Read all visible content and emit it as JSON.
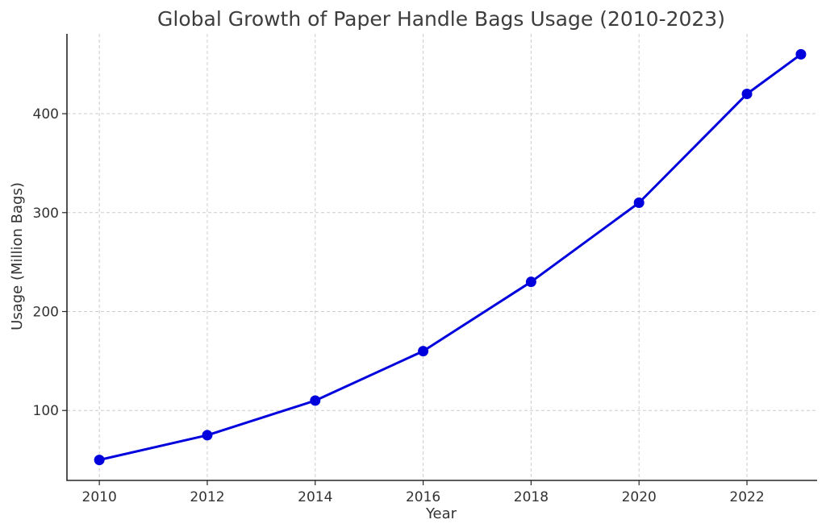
{
  "chart_data": {
    "type": "line",
    "title": "Global Growth of Paper Handle Bags Usage (2010-2023)",
    "xlabel": "Year",
    "ylabel": "Usage (Million Bags)",
    "x": [
      2010,
      2012,
      2014,
      2016,
      2018,
      2020,
      2022,
      2023
    ],
    "series": [
      {
        "values": [
          50,
          75,
          110,
          160,
          230,
          310,
          420,
          460
        ]
      }
    ],
    "xticks": [
      "2010",
      "2012",
      "2014",
      "2016",
      "2018",
      "2020",
      "2022"
    ],
    "yticks": [
      "100",
      "200",
      "300",
      "400"
    ],
    "xlim": [
      2009.4,
      2023.3
    ],
    "ylim": [
      29.3,
      480.7
    ],
    "grid": true,
    "line_color": "#0000dd",
    "marker": "circle"
  }
}
